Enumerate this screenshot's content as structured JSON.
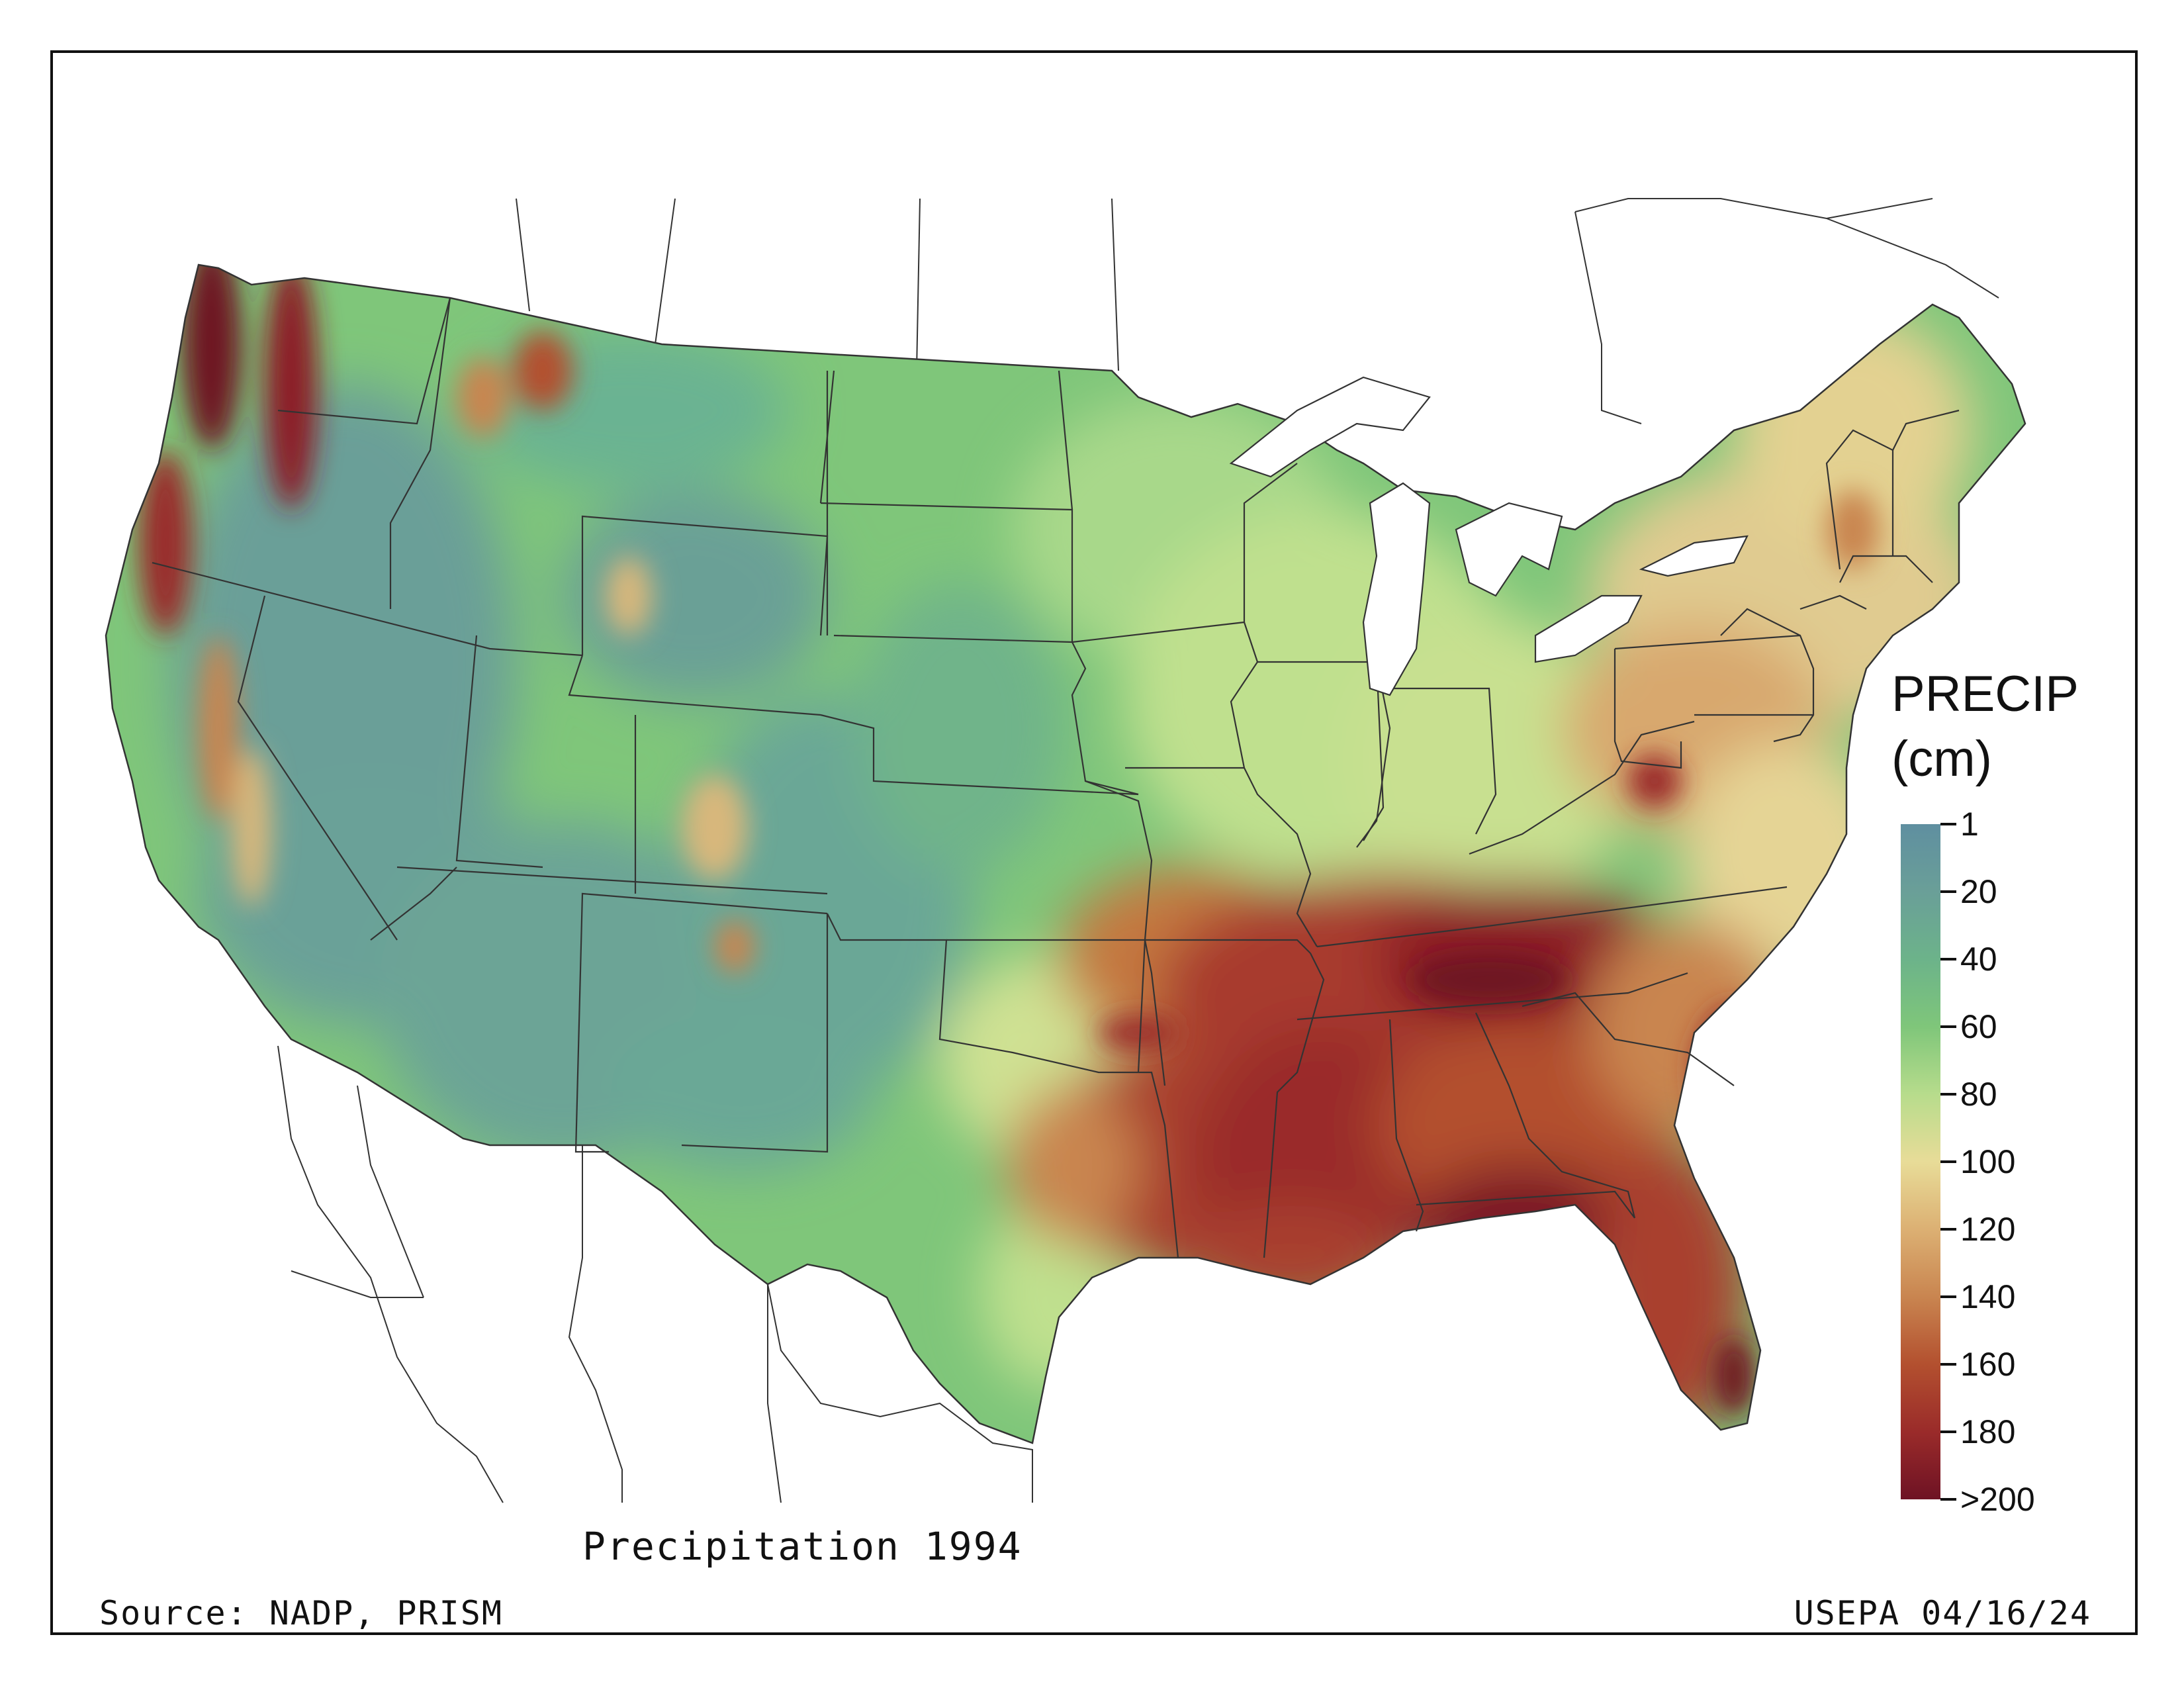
{
  "title": "Precipitation 1994",
  "source": "Source: NADP, PRISM",
  "credit": "USEPA 04/16/24",
  "legend": {
    "title_line1": "PRECIP",
    "title_line2": "(cm)",
    "ticks": [
      "1",
      "20",
      "40",
      "60",
      "80",
      "100",
      "120",
      "140",
      "160",
      "180",
      ">200"
    ],
    "colors": [
      "#5f8fa0",
      "#6a9f98",
      "#6cb38a",
      "#7fc67a",
      "#b7dc8c",
      "#e8dc98",
      "#dcb073",
      "#c98550",
      "#b3502f",
      "#9a2b2a",
      "#6e1224"
    ]
  }
}
